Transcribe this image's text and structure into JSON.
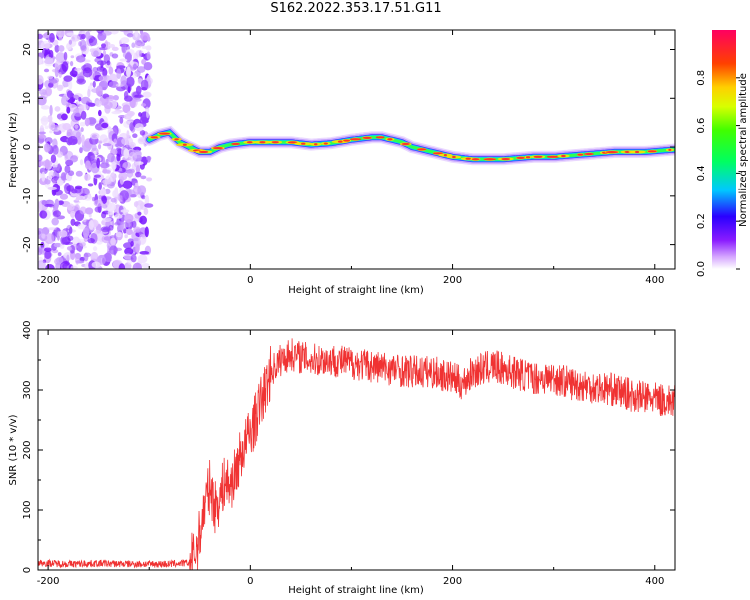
{
  "figure": {
    "title": "S162.2022.353.17.51.G11"
  },
  "chart_data": [
    {
      "type": "heatmap",
      "title": "S162.2022.353.17.51.G11",
      "xlabel": "Height of straight line (km)",
      "ylabel": "Frequency (Hz)",
      "xlim": [
        -210,
        420
      ],
      "ylim": [
        -25,
        24
      ],
      "x_ticks": [
        -200,
        0,
        200,
        400
      ],
      "y_ticks": [
        -20,
        -10,
        0,
        10,
        20
      ],
      "colorbar": {
        "label": "Normalized spectral amplitude",
        "range": [
          0,
          1
        ],
        "ticks": [
          0.0,
          0.2,
          0.4,
          0.6,
          0.8
        ]
      },
      "noise_region_x": [
        -210,
        -100
      ],
      "ridge": {
        "x": [
          -100,
          -90,
          -80,
          -70,
          -60,
          -50,
          -40,
          -30,
          -20,
          0,
          20,
          40,
          60,
          80,
          100,
          120,
          130,
          140,
          150,
          160,
          170,
          180,
          190,
          200,
          220,
          250,
          280,
          300,
          330,
          360,
          390,
          420
        ],
        "y": [
          1.5,
          2.5,
          3.0,
          1.0,
          0.0,
          -1.0,
          -1.0,
          0.0,
          0.5,
          1.0,
          1.0,
          1.0,
          0.5,
          0.8,
          1.5,
          2.0,
          2.0,
          1.5,
          1.0,
          0.0,
          -0.5,
          -1.0,
          -1.5,
          -2.0,
          -2.5,
          -2.5,
          -2.0,
          -2.0,
          -1.5,
          -1.0,
          -1.0,
          -0.5
        ]
      }
    },
    {
      "type": "line",
      "xlabel": "Height of straight line (km)",
      "ylabel": "SNR (10 * v/v)",
      "xlim": [
        -210,
        420
      ],
      "ylim": [
        0,
        400
      ],
      "x_ticks": [
        -200,
        0,
        200,
        400
      ],
      "y_ticks": [
        0,
        100,
        200,
        300,
        400
      ],
      "color": "#f03232",
      "series": [
        {
          "x": [
            -210,
            -180,
            -150,
            -120,
            -100,
            -80,
            -70,
            -60,
            -55,
            -50,
            -45,
            -40,
            -35,
            -30,
            -25,
            -20,
            -15,
            -10,
            -5,
            0,
            5,
            10,
            15,
            20,
            30,
            40,
            50,
            60,
            80,
            100,
            120,
            140,
            160,
            180,
            200,
            210,
            220,
            240,
            260,
            280,
            300,
            320,
            340,
            360,
            380,
            400,
            420
          ],
          "y": [
            12,
            10,
            11,
            10,
            10,
            10,
            11,
            12,
            25,
            60,
            110,
            140,
            105,
            120,
            150,
            140,
            160,
            190,
            210,
            230,
            250,
            280,
            300,
            330,
            350,
            360,
            355,
            350,
            350,
            345,
            340,
            335,
            330,
            330,
            320,
            310,
            330,
            340,
            330,
            320,
            320,
            310,
            305,
            300,
            290,
            285,
            280
          ]
        }
      ]
    }
  ]
}
